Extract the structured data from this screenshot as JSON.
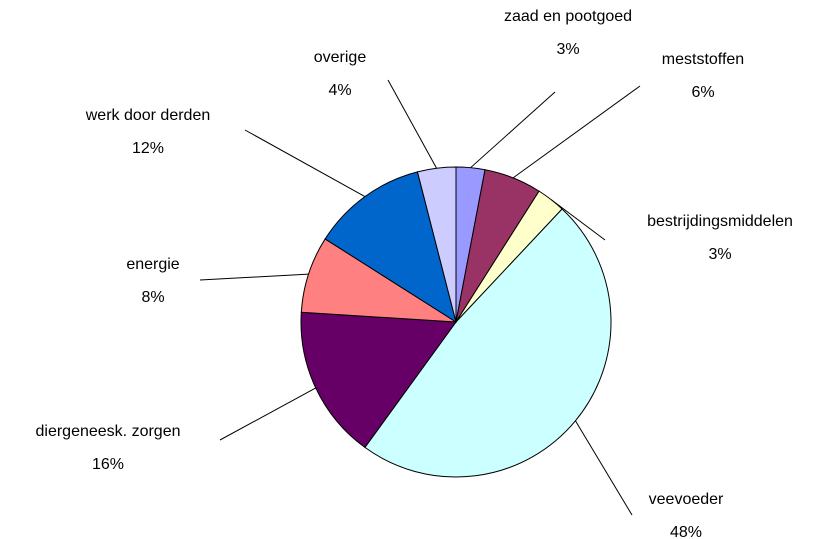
{
  "chart_data": {
    "type": "pie",
    "categories": [
      "zaad en pootgoed",
      "meststoffen",
      "bestrijdingsmiddelen",
      "veevoeder",
      "diergeneesk. zorgen",
      "energie",
      "werk door derden",
      "overige"
    ],
    "values": [
      3,
      6,
      3,
      48,
      16,
      8,
      12,
      4
    ],
    "value_labels": [
      "3%",
      "6%",
      "3%",
      "48%",
      "16%",
      "8%",
      "12%",
      "4%"
    ],
    "colors": [
      "#9999ff",
      "#993366",
      "#ffffcc",
      "#ccffff",
      "#660066",
      "#ff8080",
      "#0066cc",
      "#ccccff"
    ]
  }
}
